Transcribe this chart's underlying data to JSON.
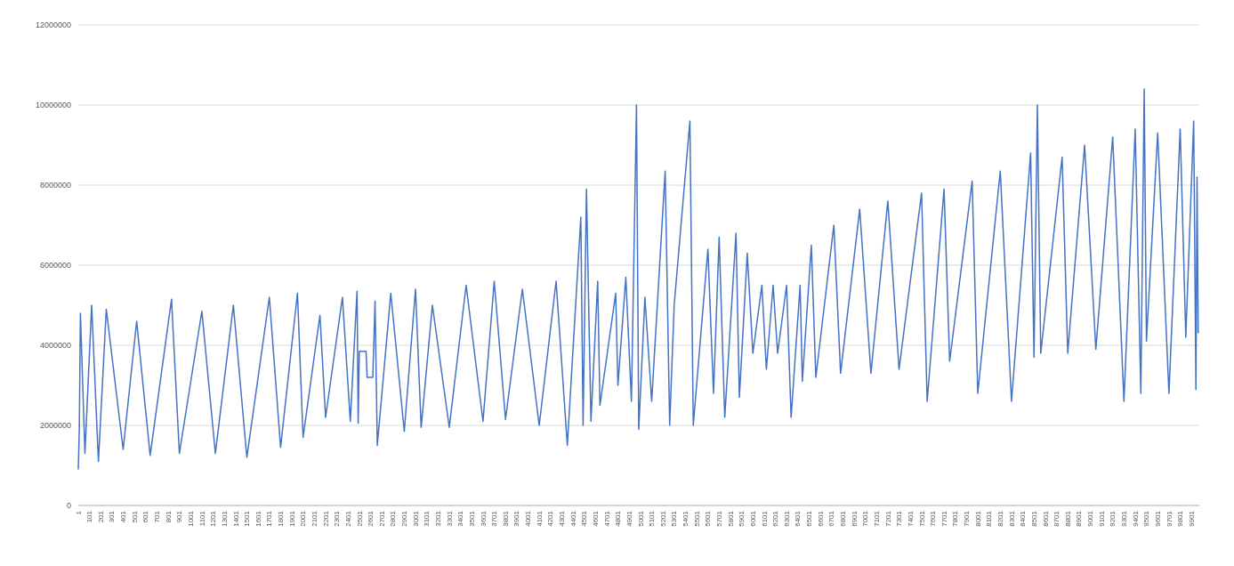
{
  "chart_data": {
    "type": "line",
    "x": [
      1,
      10,
      20,
      60,
      120,
      180,
      250,
      400,
      520,
      640,
      830,
      900,
      1100,
      1220,
      1380,
      1500,
      1700,
      1800,
      1950,
      2000,
      2150,
      2200,
      2350,
      2420,
      2480,
      2490,
      2500,
      2560,
      2570,
      2620,
      2640,
      2660,
      2780,
      2900,
      3000,
      3050,
      3150,
      3300,
      3450,
      3600,
      3700,
      3800,
      3950,
      4100,
      4250,
      4350,
      4470,
      4490,
      4520,
      4560,
      4620,
      4640,
      4700,
      4780,
      4800,
      4870,
      4920,
      4965,
      4985,
      5040,
      5100,
      5220,
      5260,
      5300,
      5440,
      5470,
      5600,
      5650,
      5700,
      5750,
      5850,
      5880,
      5950,
      6000,
      6080,
      6120,
      6180,
      6220,
      6300,
      6340,
      6420,
      6440,
      6520,
      6560,
      6720,
      6780,
      6950,
      7050,
      7200,
      7300,
      7500,
      7550,
      7700,
      7750,
      7950,
      8000,
      8200,
      8300,
      8470,
      8500,
      8530,
      8560,
      8750,
      8800,
      8950,
      9050,
      9200,
      9300,
      9400,
      9450,
      9480,
      9500,
      9600,
      9700,
      9800,
      9850,
      9920,
      9940,
      9950,
      9960
    ],
    "series": [
      {
        "color": "#4472c4",
        "values": [
          900000,
          1900000,
          4800000,
          1300000,
          5000000,
          1100000,
          4900000,
          1400000,
          4600000,
          1250000,
          5150000,
          1300000,
          4850000,
          1300000,
          5000000,
          1200000,
          5200000,
          1450000,
          5300000,
          1700000,
          4750000,
          2200000,
          5200000,
          2100000,
          5350000,
          2050000,
          3850000,
          3850000,
          3200000,
          3200000,
          5100000,
          1500000,
          5300000,
          1850000,
          5400000,
          1950000,
          5000000,
          1950000,
          5500000,
          2100000,
          5600000,
          2150000,
          5400000,
          2000000,
          5600000,
          1500000,
          7200000,
          2000000,
          7900000,
          2100000,
          5600000,
          2500000,
          3700000,
          5300000,
          3000000,
          5700000,
          2600000,
          10000000,
          1900000,
          5200000,
          2600000,
          8350000,
          2000000,
          5000000,
          9600000,
          2000000,
          6400000,
          2800000,
          6700000,
          2200000,
          6800000,
          2700000,
          6300000,
          3800000,
          5500000,
          3400000,
          5500000,
          3800000,
          5500000,
          2200000,
          5500000,
          3100000,
          6500000,
          3200000,
          7000000,
          3300000,
          7400000,
          3300000,
          7600000,
          3400000,
          7800000,
          2600000,
          7900000,
          3600000,
          8100000,
          2800000,
          8350000,
          2600000,
          8800000,
          3700000,
          10000000,
          3800000,
          8700000,
          3800000,
          9000000,
          3900000,
          9200000,
          2600000,
          9400000,
          2800000,
          10400000,
          4100000,
          9300000,
          2800000,
          9400000,
          4200000,
          9600000,
          2900000,
          8200000,
          4300000
        ]
      }
    ],
    "xlim": [
      1,
      9970
    ],
    "xticks": [
      1,
      101,
      201,
      301,
      401,
      501,
      601,
      701,
      801,
      901,
      1001,
      1101,
      1201,
      1301,
      1401,
      1501,
      1601,
      1701,
      1801,
      1901,
      2001,
      2101,
      2201,
      2301,
      2401,
      2501,
      2601,
      2701,
      2801,
      2901,
      3001,
      3101,
      3201,
      3301,
      3401,
      3501,
      3601,
      3701,
      3801,
      3901,
      4001,
      4101,
      4201,
      4301,
      4401,
      4501,
      4601,
      4701,
      4801,
      4901,
      5001,
      5101,
      5201,
      5301,
      5401,
      5501,
      5601,
      5701,
      5801,
      5901,
      6001,
      6101,
      6201,
      6301,
      6401,
      6501,
      6601,
      6701,
      6801,
      6901,
      7001,
      7101,
      7201,
      7301,
      7401,
      7501,
      7601,
      7701,
      7801,
      7901,
      8001,
      8101,
      8201,
      8301,
      8401,
      8501,
      8601,
      8701,
      8801,
      8901,
      9001,
      9101,
      9201,
      9301,
      9401,
      9501,
      9601,
      9701,
      9801,
      9901
    ],
    "ylim": [
      0,
      12000000
    ],
    "yticks": [
      0,
      2000000,
      4000000,
      6000000,
      8000000,
      10000000,
      12000000
    ],
    "grid": "y",
    "marker": "none",
    "line_style": "solid"
  }
}
